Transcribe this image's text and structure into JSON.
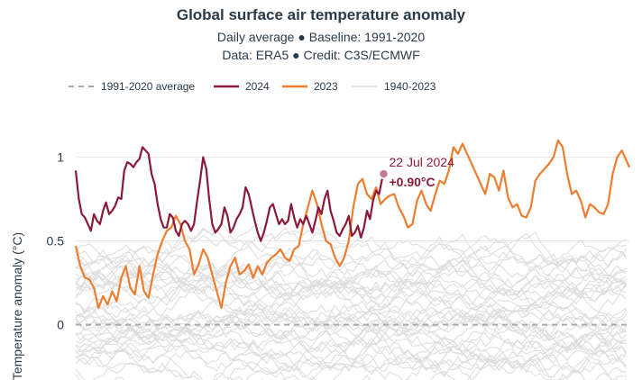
{
  "header": {
    "title": "Global surface air temperature anomaly",
    "subtitle_line1": "Daily average ● Baseline: 1991-2020",
    "subtitle_line2": "Data: ERA5 ● Credit: C3S/ECMWF"
  },
  "colors": {
    "s2024": "#8b1a3a",
    "s2023": "#ee7d30",
    "history": "#dcdcdc",
    "baseline": "#aaaaaa",
    "grid": "#e6e6e6"
  },
  "chart_data": {
    "type": "line",
    "ylabel": "Temperature anomaly (°C)",
    "ylim": [
      -0.33,
      1.25
    ],
    "yticks": [
      0,
      0.5,
      1
    ],
    "ytick_labels": [
      "0",
      "0.5",
      "1"
    ],
    "x_unit": "day of year",
    "xlim": [
      1,
      366
    ],
    "grid": true,
    "legend": [
      {
        "label": "1991-2020 average",
        "style": "dashed",
        "color": "#aaaaaa"
      },
      {
        "label": "2024",
        "style": "solid",
        "color": "#8b1a3a"
      },
      {
        "label": "2023",
        "style": "solid",
        "color": "#ee7d30"
      },
      {
        "label": "1940-2023",
        "style": "solid",
        "color": "#dcdcdc"
      }
    ],
    "baseline": {
      "name": "1991-2020 average",
      "value": 0
    },
    "series": [
      {
        "name": "2024",
        "x": [
          1,
          3,
          5,
          7,
          9,
          11,
          13,
          15,
          17,
          19,
          21,
          23,
          25,
          27,
          29,
          31,
          33,
          35,
          37,
          39,
          41,
          43,
          45,
          47,
          49,
          51,
          53,
          55,
          57,
          59,
          61,
          63,
          65,
          67,
          69,
          71,
          73,
          75,
          77,
          79,
          81,
          83,
          85,
          87,
          89,
          91,
          93,
          95,
          97,
          99,
          101,
          103,
          105,
          107,
          109,
          111,
          113,
          115,
          117,
          119,
          121,
          123,
          125,
          127,
          129,
          131,
          133,
          135,
          137,
          139,
          141,
          143,
          145,
          147,
          149,
          151,
          153,
          155,
          157,
          159,
          161,
          163,
          165,
          167,
          169,
          171,
          173,
          175,
          177,
          179,
          181,
          183,
          185,
          187,
          189,
          191,
          193,
          195,
          197,
          199,
          201,
          203,
          204
        ],
        "values": [
          0.92,
          0.75,
          0.66,
          0.64,
          0.6,
          0.56,
          0.66,
          0.62,
          0.6,
          0.68,
          0.73,
          0.66,
          0.68,
          0.71,
          0.76,
          0.75,
          0.92,
          0.97,
          0.96,
          0.94,
          0.97,
          0.99,
          1.06,
          1.04,
          1.02,
          0.9,
          0.84,
          0.72,
          0.63,
          0.58,
          0.58,
          0.66,
          0.64,
          0.56,
          0.53,
          0.6,
          0.62,
          0.6,
          0.56,
          0.6,
          0.74,
          0.86,
          1.0,
          0.93,
          0.75,
          0.6,
          0.55,
          0.57,
          0.6,
          0.7,
          0.65,
          0.55,
          0.58,
          0.63,
          0.66,
          0.7,
          0.82,
          0.78,
          0.7,
          0.62,
          0.55,
          0.5,
          0.55,
          0.62,
          0.7,
          0.72,
          0.66,
          0.6,
          0.63,
          0.6,
          0.62,
          0.72,
          0.64,
          0.58,
          0.63,
          0.6,
          0.65,
          0.6,
          0.55,
          0.62,
          0.7,
          0.66,
          0.75,
          0.8,
          0.68,
          0.62,
          0.55,
          0.53,
          0.57,
          0.6,
          0.65,
          0.53,
          0.55,
          0.59,
          0.52,
          0.58,
          0.68,
          0.63,
          0.74,
          0.8,
          0.78,
          0.87,
          0.9
        ]
      },
      {
        "name": "2023",
        "x": [
          1,
          4,
          7,
          10,
          13,
          16,
          19,
          22,
          25,
          28,
          31,
          34,
          37,
          40,
          43,
          46,
          49,
          52,
          55,
          58,
          61,
          64,
          67,
          70,
          73,
          76,
          79,
          82,
          85,
          88,
          91,
          94,
          97,
          100,
          103,
          106,
          109,
          112,
          115,
          118,
          121,
          124,
          127,
          130,
          133,
          136,
          139,
          142,
          145,
          148,
          151,
          154,
          157,
          160,
          163,
          166,
          169,
          172,
          175,
          178,
          181,
          184,
          187,
          190,
          193,
          196,
          199,
          202,
          205,
          208,
          211,
          214,
          217,
          220,
          223,
          226,
          229,
          232,
          235,
          238,
          241,
          244,
          247,
          250,
          253,
          256,
          259,
          262,
          265,
          268,
          271,
          274,
          277,
          280,
          283,
          286,
          289,
          292,
          295,
          298,
          301,
          304,
          307,
          310,
          313,
          316,
          319,
          322,
          325,
          328,
          331,
          334,
          337,
          340,
          343,
          346,
          349,
          352,
          355,
          358,
          361,
          364,
          366
        ],
        "values": [
          0.47,
          0.35,
          0.28,
          0.27,
          0.22,
          0.1,
          0.17,
          0.12,
          0.2,
          0.14,
          0.28,
          0.35,
          0.22,
          0.18,
          0.35,
          0.2,
          0.16,
          0.3,
          0.42,
          0.5,
          0.56,
          0.58,
          0.65,
          0.6,
          0.5,
          0.45,
          0.3,
          0.36,
          0.45,
          0.4,
          0.3,
          0.2,
          0.1,
          0.25,
          0.35,
          0.4,
          0.3,
          0.32,
          0.36,
          0.28,
          0.35,
          0.3,
          0.37,
          0.4,
          0.42,
          0.45,
          0.4,
          0.38,
          0.45,
          0.47,
          0.6,
          0.7,
          0.8,
          0.72,
          0.6,
          0.5,
          0.48,
          0.4,
          0.35,
          0.4,
          0.5,
          0.7,
          0.84,
          0.87,
          0.78,
          0.75,
          0.82,
          0.72,
          0.75,
          0.77,
          0.78,
          0.7,
          0.65,
          0.58,
          0.6,
          0.74,
          0.8,
          0.72,
          0.68,
          0.78,
          0.86,
          0.84,
          0.92,
          1.06,
          1.02,
          1.08,
          1.02,
          0.96,
          0.9,
          0.84,
          0.78,
          0.9,
          0.88,
          0.8,
          0.92,
          0.76,
          0.7,
          0.72,
          0.65,
          0.64,
          0.7,
          0.86,
          0.9,
          0.93,
          0.96,
          1.0,
          1.1,
          1.06,
          0.9,
          0.78,
          0.8,
          0.74,
          0.64,
          0.72,
          0.7,
          0.67,
          0.66,
          0.72,
          0.9,
          1.0,
          1.04,
          0.98,
          0.94
        ]
      }
    ],
    "annotation": {
      "date": "22 Jul 2024",
      "value": "+0.90°C",
      "x": 204,
      "y": 0.9
    }
  }
}
